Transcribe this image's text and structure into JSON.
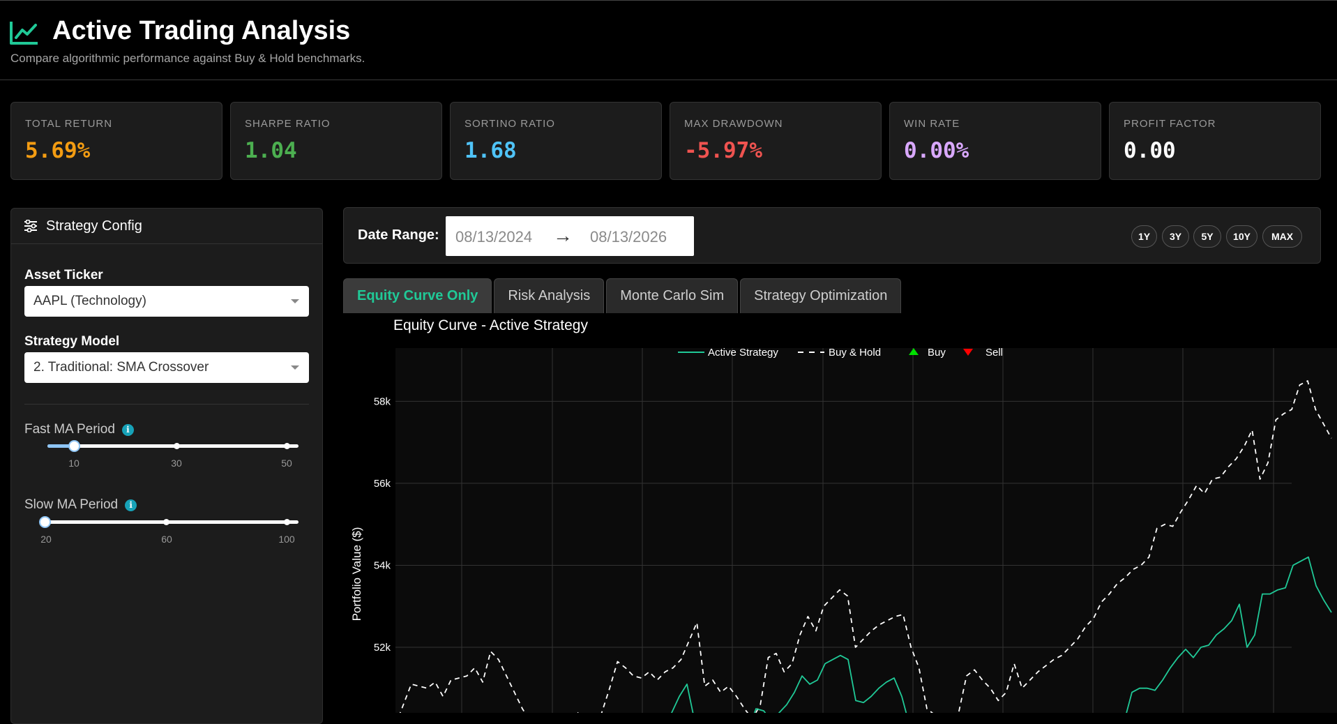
{
  "header": {
    "title": "Active Trading Analysis",
    "subtitle": "Compare algorithmic performance against Buy & Hold benchmarks."
  },
  "metrics": [
    {
      "label": "Total Return",
      "value": "5.69%",
      "color": "#f39c12"
    },
    {
      "label": "Sharpe Ratio",
      "value": "1.04",
      "color": "#4caf50"
    },
    {
      "label": "Sortino Ratio",
      "value": "1.68",
      "color": "#4fc3f7"
    },
    {
      "label": "Max Drawdown",
      "value": "-5.97%",
      "color": "#ef5350"
    },
    {
      "label": "Win Rate",
      "value": "0.00%",
      "color": "#d9a8ff"
    },
    {
      "label": "Profit Factor",
      "value": "0.00",
      "color": "#ffffff"
    }
  ],
  "sidebar": {
    "title": "Strategy Config",
    "asset_label": "Asset Ticker",
    "asset_value": "AAPL (Technology)",
    "strategy_label": "Strategy Model",
    "strategy_value": "2. Traditional: SMA Crossover",
    "fast_label": "Fast MA Period",
    "fast_ticks": [
      "10",
      "30",
      "50"
    ],
    "fast_value": 10,
    "slow_label": "Slow MA Period",
    "slow_ticks": [
      "20",
      "60",
      "100"
    ],
    "slow_value": 20
  },
  "date_range": {
    "label": "Date Range:",
    "start": "08/13/2024",
    "arrow": "→",
    "end": "08/13/2026",
    "buttons": [
      "1Y",
      "3Y",
      "5Y",
      "10Y",
      "MAX"
    ]
  },
  "tabs": [
    {
      "label": "Equity Curve Only",
      "active": true
    },
    {
      "label": "Risk Analysis",
      "active": false
    },
    {
      "label": "Monte Carlo Sim",
      "active": false
    },
    {
      "label": "Strategy Optimization",
      "active": false
    }
  ],
  "chart_data": {
    "type": "line",
    "title": "Equity Curve - Active Strategy",
    "ylabel": "Portfolio Value ($)",
    "xlabel": "",
    "y_ticks": [
      52000,
      54000,
      56000,
      58000
    ],
    "y_tick_labels": [
      "52k",
      "54k",
      "56k",
      "58k"
    ],
    "ylim": [
      50400,
      59300
    ],
    "grid": true,
    "legend_position": "top-center",
    "legend": [
      {
        "name": "Active Strategy",
        "kind": "line",
        "color": "#20c997"
      },
      {
        "name": "Buy & Hold",
        "kind": "dash",
        "color": "#ffffff"
      },
      {
        "name": "Buy",
        "kind": "triangle-up",
        "color": "#00e000"
      },
      {
        "name": "Sell",
        "kind": "triangle-down",
        "color": "#ff0000"
      }
    ],
    "series": [
      {
        "name": "Buy & Hold",
        "style": "dash",
        "color": "#ffffff",
        "values": [
          50100,
          50600,
          51100,
          51050,
          51000,
          51150,
          50800,
          51200,
          51250,
          51300,
          51500,
          51150,
          51900,
          51700,
          51300,
          50900,
          50500,
          50200,
          50300,
          50350,
          50200,
          50100,
          50250,
          50400,
          50050,
          50100,
          50400,
          51000,
          51650,
          51500,
          51300,
          51250,
          51400,
          51200,
          51400,
          51500,
          51700,
          52150,
          52600,
          51050,
          51200,
          50900,
          51050,
          50800,
          50500,
          50250,
          50600,
          51750,
          51850,
          51400,
          51600,
          52300,
          52750,
          52400,
          53000,
          53200,
          53400,
          53250,
          52000,
          52200,
          52400,
          52550,
          52650,
          52750,
          52800,
          52000,
          51500,
          50500,
          50350,
          50200,
          50200,
          50400,
          51300,
          51450,
          51200,
          51000,
          50700,
          50900,
          51600,
          51000,
          51200,
          51400,
          51550,
          51700,
          51800,
          52000,
          52200,
          52500,
          52700,
          53100,
          53300,
          53550,
          53700,
          53900,
          54000,
          54200,
          54900,
          55000,
          54950,
          55300,
          55600,
          55950,
          55750,
          56100,
          56150,
          56400,
          56600,
          56900,
          57300,
          56100,
          56500,
          57550,
          57700,
          57800,
          58400,
          58500,
          57800,
          57450,
          57100
        ]
      },
      {
        "name": "Active Strategy",
        "style": "solid",
        "color": "#20c997",
        "values": [
          50000,
          50000,
          50000,
          50000,
          50000,
          50000,
          50000,
          50000,
          50000,
          50000,
          50000,
          50000,
          50000,
          50000,
          50000,
          50000,
          50000,
          50000,
          50000,
          50000,
          50000,
          50000,
          50000,
          50000,
          50000,
          50000,
          50000,
          50000,
          50000,
          50000,
          50000,
          50000,
          50000,
          50000,
          50000,
          50000,
          50400,
          50800,
          51100,
          50200,
          50100,
          50000,
          49900,
          49800,
          49900,
          50000,
          50000,
          50500,
          50450,
          50200,
          50400,
          50600,
          50900,
          51300,
          51100,
          51200,
          51600,
          51700,
          51800,
          51700,
          50700,
          50650,
          50800,
          51000,
          51150,
          51250,
          50800,
          50100,
          50000,
          50000,
          50000,
          50000,
          50000,
          50000,
          50000,
          50000,
          50000,
          50000,
          50000,
          50000,
          50000,
          50000,
          50000,
          50000,
          50000,
          50000,
          50000,
          50000,
          50000,
          50000,
          50000,
          50000,
          50000,
          50000,
          50000,
          50200,
          50900,
          51000,
          51000,
          50950,
          51200,
          51500,
          51750,
          51950,
          51750,
          52000,
          52050,
          52300,
          52450,
          52650,
          53050,
          52000,
          52300,
          53300,
          53300,
          53400,
          53450,
          54000,
          54100,
          54200,
          53500,
          53150,
          52850
        ]
      }
    ]
  }
}
